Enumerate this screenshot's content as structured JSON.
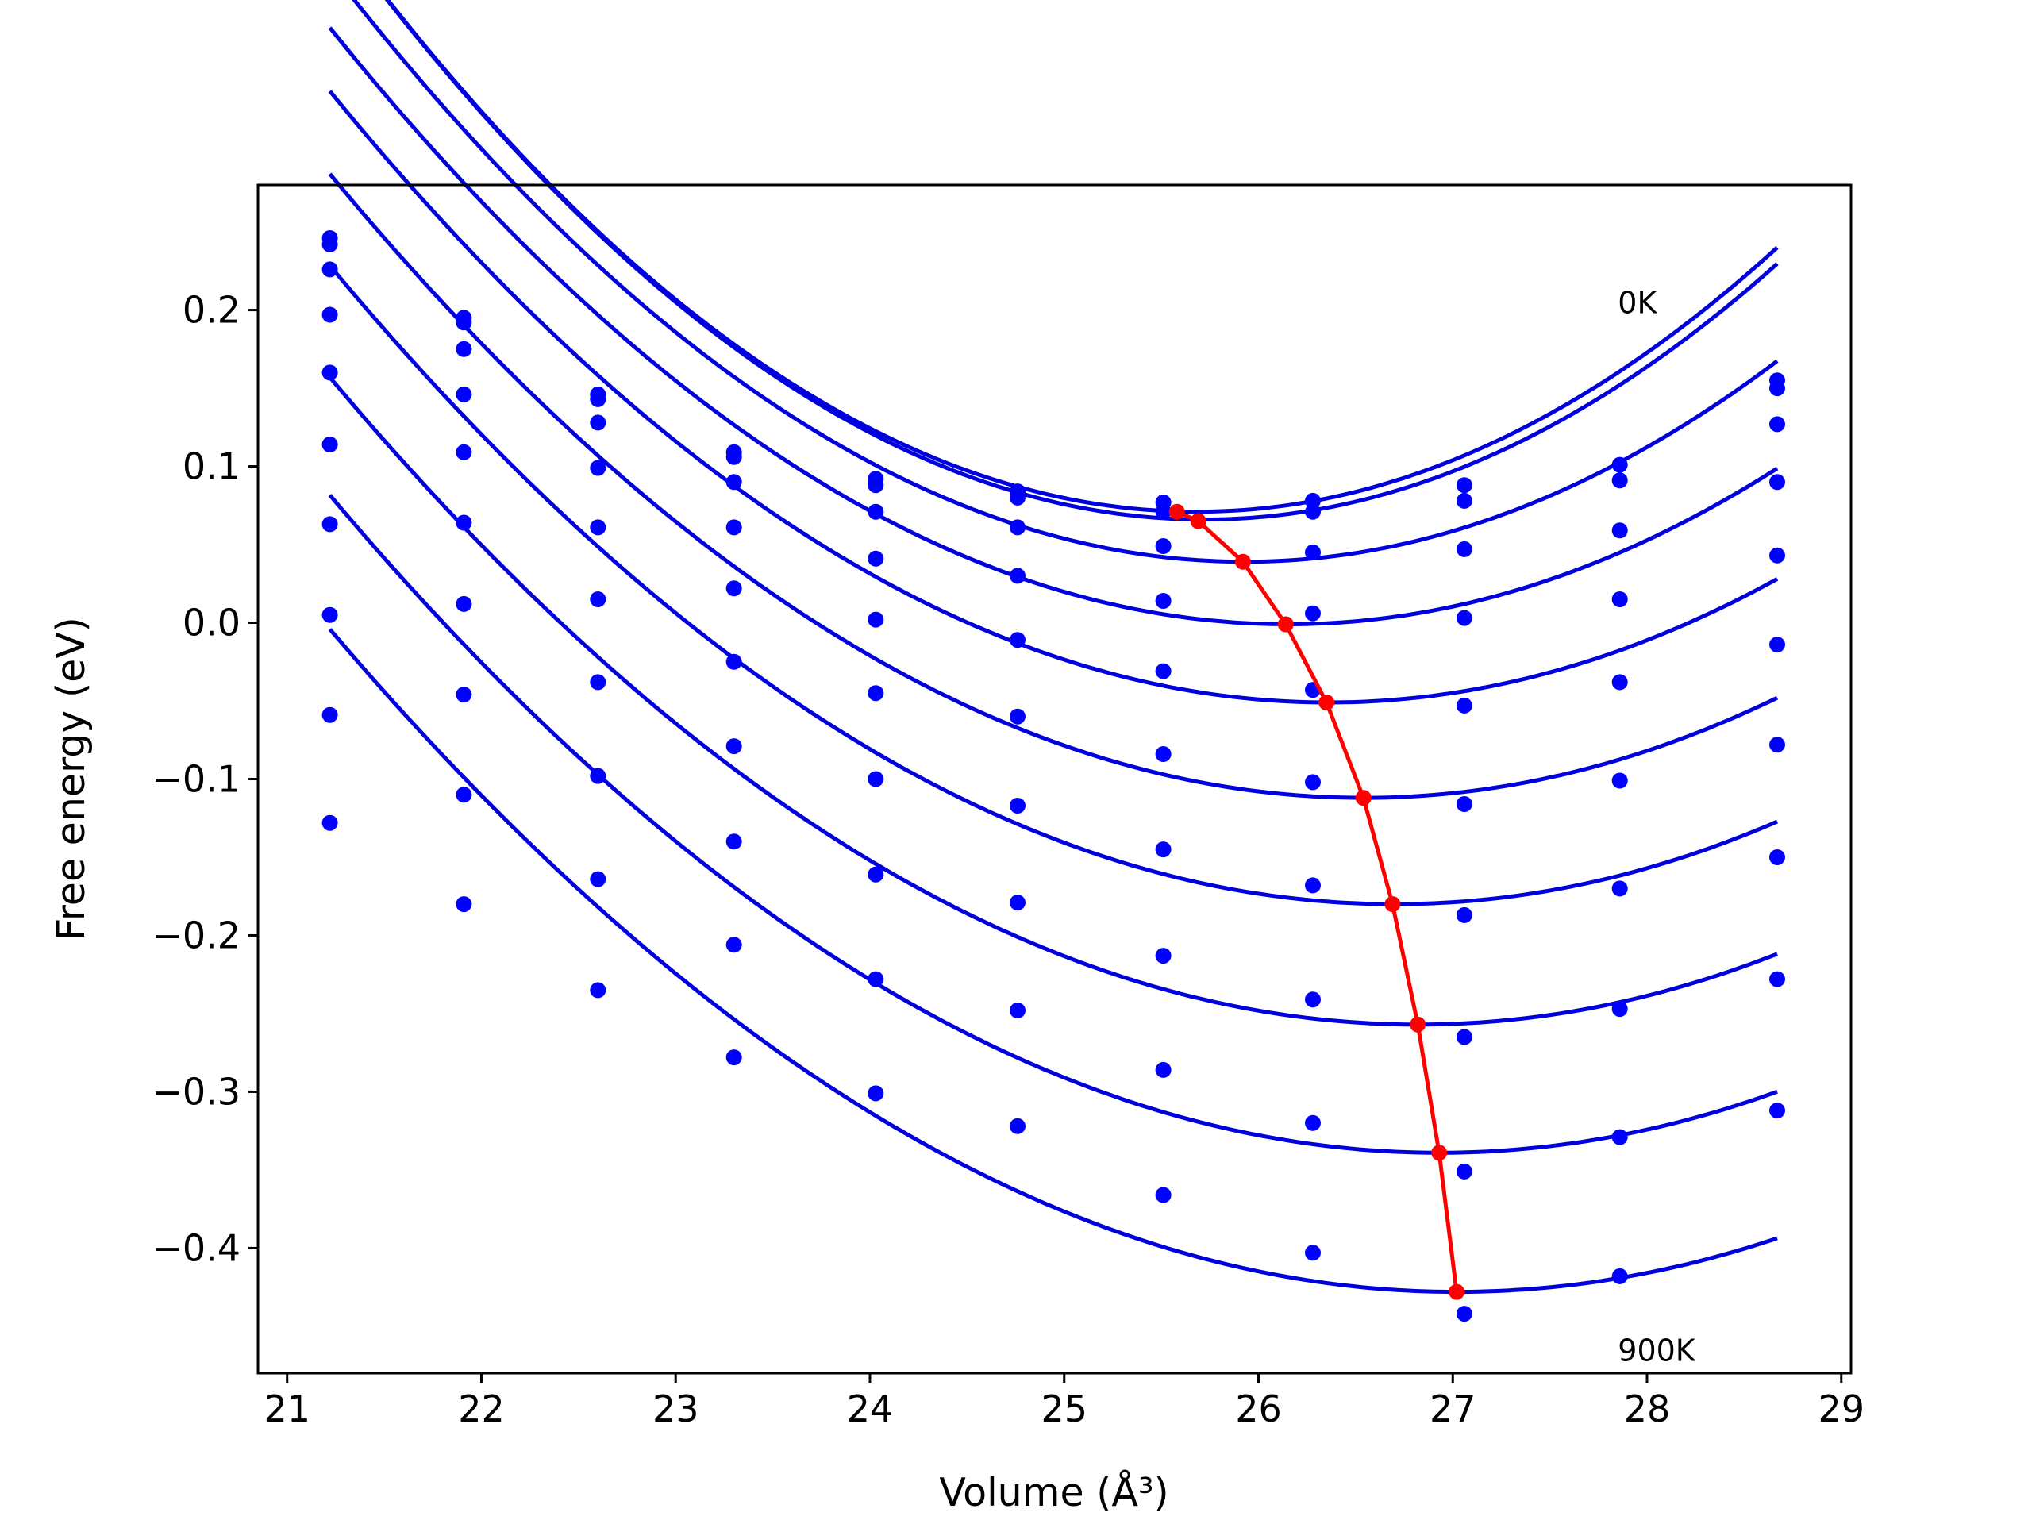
{
  "chart_data": {
    "type": "scatter",
    "title": "",
    "xlabel": "Volume",
    "xlabel_unit": "(Å³)",
    "ylabel": "Free energy (eV)",
    "xlim": [
      20.85,
      29.05
    ],
    "ylim": [
      -0.48,
      0.28
    ],
    "xticks": [
      21,
      22,
      23,
      24,
      25,
      26,
      27,
      28,
      29
    ],
    "yticks": [
      -0.4,
      -0.3,
      -0.2,
      -0.1,
      0.0,
      0.1,
      0.2
    ],
    "xtick_labels": [
      "21",
      "22",
      "23",
      "24",
      "25",
      "26",
      "27",
      "28",
      "29"
    ],
    "ytick_labels": [
      "−0.4",
      "−0.3",
      "−0.2",
      "−0.1",
      "0.0",
      "0.1",
      "0.2"
    ],
    "grid": false,
    "annotations": [
      {
        "text": "0K",
        "x": 27.85,
        "y": 0.205
      },
      {
        "text": "900K",
        "x": 27.85,
        "y": -0.465
      }
    ],
    "colors": {
      "data": "#0000ff",
      "fit": "#0000dd",
      "minima": "#ff0000"
    },
    "volumes": [
      21.22,
      21.91,
      22.6,
      23.3,
      24.03,
      24.76,
      25.51,
      26.28,
      27.06,
      27.86,
      28.67
    ],
    "series": [
      {
        "values": [
          0.246,
          0.195,
          0.146,
          0.109,
          0.092,
          0.084,
          0.077,
          0.078,
          0.088,
          0.101,
          0.155
        ],
        "fit": {
          "a": 0.0189,
          "v0": 25.68,
          "fmin": 0.071
        }
      },
      {
        "values": [
          0.242,
          0.192,
          0.143,
          0.106,
          0.088,
          0.08,
          0.071,
          0.071,
          0.078,
          0.091,
          0.15
        ],
        "fit": {
          "a": 0.0188,
          "v0": 25.72,
          "fmin": 0.066
        }
      },
      {
        "values": [
          0.226,
          0.175,
          0.128,
          0.09,
          0.071,
          0.061,
          0.049,
          0.045,
          0.047,
          0.059,
          0.127
        ],
        "fit": {
          "a": 0.0171,
          "v0": 25.93,
          "fmin": 0.039
        }
      },
      {
        "values": [
          0.197,
          0.146,
          0.099,
          0.061,
          0.041,
          0.03,
          0.014,
          0.006,
          0.003,
          0.015,
          0.09
        ],
        "fit": {
          "a": 0.0157,
          "v0": 26.15,
          "fmin": -0.001
        }
      },
      {
        "values": [
          0.16,
          0.109,
          0.061,
          0.022,
          0.002,
          -0.011,
          -0.031,
          -0.043,
          -0.053,
          -0.038,
          0.043
        ],
        "fit": {
          "a": 0.0148,
          "v0": 26.36,
          "fmin": -0.051
        }
      },
      {
        "values": [
          0.114,
          0.064,
          0.015,
          -0.025,
          -0.045,
          -0.06,
          -0.084,
          -0.102,
          -0.116,
          -0.101,
          -0.014
        ],
        "fit": {
          "a": 0.0141,
          "v0": 26.54,
          "fmin": -0.112
        }
      },
      {
        "values": [
          0.063,
          0.012,
          -0.038,
          -0.079,
          -0.1,
          -0.117,
          -0.145,
          -0.168,
          -0.187,
          -0.17,
          -0.078
        ],
        "fit": {
          "a": 0.0136,
          "v0": 26.7,
          "fmin": -0.18
        }
      },
      {
        "values": [
          0.005,
          -0.046,
          -0.098,
          -0.14,
          -0.161,
          -0.179,
          -0.213,
          -0.241,
          -0.265,
          -0.247,
          -0.15
        ],
        "fit": {
          "a": 0.0132,
          "v0": 26.82,
          "fmin": -0.257
        }
      },
      {
        "values": [
          -0.059,
          -0.11,
          -0.164,
          -0.206,
          -0.228,
          -0.248,
          -0.286,
          -0.32,
          -0.351,
          -0.329,
          -0.228
        ],
        "fit": {
          "a": 0.0129,
          "v0": 26.93,
          "fmin": -0.339
        }
      },
      {
        "values": [
          -0.128,
          -0.18,
          -0.235,
          -0.278,
          -0.301,
          -0.322,
          -0.366,
          -0.403,
          -0.442,
          -0.418,
          -0.312
        ],
        "fit": {
          "a": 0.0126,
          "v0": 27.02,
          "fmin": -0.428
        }
      }
    ],
    "minima": {
      "x": [
        25.58,
        25.69,
        25.92,
        26.14,
        26.35,
        26.54,
        26.69,
        26.82,
        26.93,
        27.02
      ],
      "y": [
        0.071,
        0.065,
        0.039,
        -0.001,
        -0.051,
        -0.112,
        -0.18,
        -0.257,
        -0.339,
        -0.428
      ]
    }
  }
}
